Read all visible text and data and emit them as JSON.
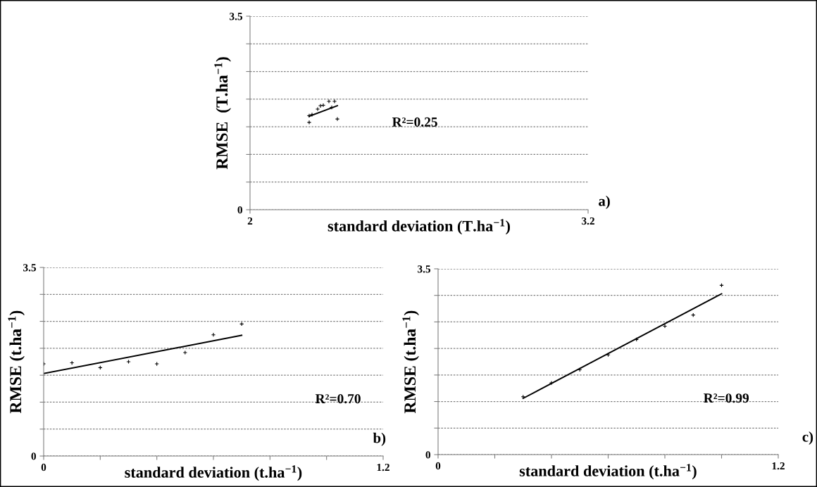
{
  "chart_data": [
    {
      "type": "scatter",
      "xlabel": "standard deviation (T.ha$^{−1}$)",
      "ylabel": "RMSE  (T.ha$^{−1}$)",
      "annotations": [
        "R²=0.25",
        "a)"
      ],
      "xlim": [
        2,
        3.2
      ],
      "ylim": [
        0,
        3.5
      ],
      "xticks": [
        2,
        3.2
      ],
      "yticks": [
        0,
        {
          "value": 0.5,
          "label": null
        },
        {
          "value": 1,
          "label": null
        },
        {
          "value": 1.5,
          "label": null
        },
        {
          "value": 2,
          "label": null
        },
        {
          "value": 2.5,
          "label": null
        },
        {
          "value": 3,
          "label": null
        },
        3.5
      ],
      "grid": "y",
      "series": [
        {
          "marker": "cross",
          "color": "#000000",
          "x": [
            2.21,
            2.21,
            2.22,
            2.24,
            2.25,
            2.26,
            2.28,
            2.29,
            2.3,
            2.31
          ],
          "values": [
            1.58,
            1.7,
            1.72,
            1.82,
            1.88,
            1.89,
            1.96,
            1.85,
            1.96,
            1.64
          ]
        },
        {
          "type": "line",
          "color": "#000000",
          "x": [
            2.21,
            2.31
          ],
          "values": [
            1.69,
            1.88
          ]
        }
      ]
    },
    {
      "type": "scatter",
      "xlabel": "standard deviation (t.ha$^{−1}$)",
      "ylabel": "RMSE (t.ha$^{−1}$)",
      "annotations": [
        "R²=0.70",
        "b)"
      ],
      "xlim": [
        0,
        1.2
      ],
      "ylim": [
        0,
        3.5
      ],
      "xticks": [
        0,
        {
          "value": 0.2,
          "label": null
        },
        {
          "value": 0.4,
          "label": null
        },
        {
          "value": 0.6,
          "label": null
        },
        {
          "value": 0.8,
          "label": null
        },
        {
          "value": 1,
          "label": null
        },
        1.2
      ],
      "yticks": [
        0,
        {
          "value": 0.5,
          "label": null
        },
        {
          "value": 1,
          "label": null
        },
        {
          "value": 1.5,
          "label": null
        },
        {
          "value": 2,
          "label": null
        },
        {
          "value": 2.5,
          "label": null
        },
        {
          "value": 3,
          "label": null
        },
        3.5
      ],
      "grid": "y",
      "series": [
        {
          "marker": "cross",
          "color": "#000000",
          "x": [
            0.0,
            0.1,
            0.2,
            0.3,
            0.4,
            0.5,
            0.6,
            0.7
          ],
          "values": [
            1.71,
            1.73,
            1.64,
            1.75,
            1.71,
            1.92,
            2.25,
            2.45
          ]
        },
        {
          "type": "line",
          "color": "#000000",
          "x": [
            0,
            0.7
          ],
          "values": [
            1.53,
            2.24
          ]
        }
      ]
    },
    {
      "type": "scatter",
      "xlabel": "standard deviation (t.ha$^{−1}$)",
      "ylabel": "RMSE (t.ha$^{−1}$)",
      "annotations": [
        "R²=0.99",
        "c)"
      ],
      "xlim": [
        0,
        1.2
      ],
      "ylim": [
        0,
        3.5
      ],
      "xticks": [
        0,
        {
          "value": 0.2,
          "label": null
        },
        {
          "value": 0.4,
          "label": null
        },
        {
          "value": 0.6,
          "label": null
        },
        {
          "value": 0.8,
          "label": null
        },
        {
          "value": 1,
          "label": null
        },
        1.2
      ],
      "yticks": [
        0,
        {
          "value": 0.5,
          "label": null
        },
        {
          "value": 1,
          "label": null
        },
        {
          "value": 1.5,
          "label": null
        },
        {
          "value": 2,
          "label": null
        },
        {
          "value": 2.5,
          "label": null
        },
        {
          "value": 3,
          "label": null
        },
        3.5
      ],
      "grid": "y",
      "series": [
        {
          "marker": "cross",
          "color": "#000000",
          "x": [
            0.3,
            0.4,
            0.5,
            0.6,
            0.7,
            0.8,
            0.9,
            1.0
          ],
          "values": [
            1.09,
            1.35,
            1.6,
            1.88,
            2.17,
            2.42,
            2.63,
            3.19
          ]
        },
        {
          "type": "line",
          "color": "#000000",
          "x": [
            0.3,
            1.0
          ],
          "values": [
            1.06,
            3.03
          ]
        }
      ]
    }
  ]
}
